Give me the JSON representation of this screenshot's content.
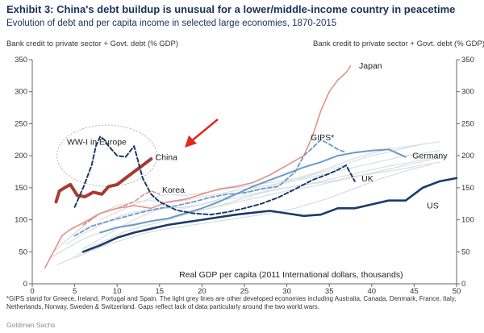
{
  "header": {
    "title": "Exhibit 3: China's debt buildup is unusual for a lower/middle-income country in peacetime",
    "subtitle": "Evolution of debt and per capita income in selected large economies, 1870-2015",
    "left_axis_title": "Bank credit to private sector + Govt. debt (% GDP)",
    "right_axis_title": "Bank credit to private sector + Govt. debt (% GDP)"
  },
  "footnote": "*GIPS stand for Greece, Ireland, Portugal and Spain. The light grey lines are other developed economies including Australia, Canada, Denmark, France, Italy, Netherlands, Norway, Sweden & Switzerland. Gaps reflect lack of data particularly around the two world wars.",
  "source": "Goldman Sachs",
  "chart_data": {
    "type": "line",
    "title": "Exhibit 3: China's debt buildup is unusual for a lower/middle-income country in peacetime",
    "xlabel": "Real GDP per capita (2011 International dollars, thousands)",
    "ylabel": "Bank credit to private sector + Govt. debt (% GDP)",
    "xlim": [
      0,
      50
    ],
    "ylim": [
      0,
      350
    ],
    "x_ticks": [
      0,
      5,
      10,
      15,
      20,
      25,
      30,
      35,
      40,
      45,
      50
    ],
    "y_ticks": [
      0,
      50,
      100,
      150,
      200,
      250,
      300,
      350
    ],
    "grid": false,
    "annotation_circle": "WW-I in Europe",
    "series": [
      {
        "name": "China",
        "color": "#a83a32",
        "points": [
          [
            2.8,
            128
          ],
          [
            3.2,
            145
          ],
          [
            3.8,
            150
          ],
          [
            4.5,
            155
          ],
          [
            5.3,
            138
          ],
          [
            6.2,
            136
          ],
          [
            7.2,
            143
          ],
          [
            8.2,
            140
          ],
          [
            9.0,
            152
          ],
          [
            10.0,
            155
          ],
          [
            11.0,
            165
          ],
          [
            12.0,
            175
          ],
          [
            13.0,
            185
          ],
          [
            14.0,
            195
          ]
        ]
      },
      {
        "name": "Japan",
        "color": "#e0928a",
        "points": [
          [
            1.5,
            25
          ],
          [
            2.5,
            50
          ],
          [
            3.5,
            75
          ],
          [
            4.5,
            85
          ],
          [
            6,
            95
          ],
          [
            8,
            110
          ],
          [
            10,
            118
          ],
          [
            12,
            122
          ],
          [
            14,
            118
          ],
          [
            16,
            128
          ],
          [
            18,
            132
          ],
          [
            20,
            140
          ],
          [
            22,
            148
          ],
          [
            24,
            152
          ],
          [
            26,
            158
          ],
          [
            28,
            170
          ],
          [
            30,
            185
          ],
          [
            32,
            200
          ],
          [
            33,
            230
          ],
          [
            34,
            270
          ],
          [
            35,
            300
          ],
          [
            36,
            318
          ],
          [
            37,
            330
          ],
          [
            37.5,
            340
          ]
        ]
      },
      {
        "name": "Korea",
        "color": "#e0928a",
        "points": [
          [
            6,
            92
          ],
          [
            8,
            110
          ],
          [
            10,
            118
          ],
          [
            12,
            128
          ],
          [
            13,
            138
          ],
          [
            14,
            145
          ],
          [
            15,
            140
          ]
        ]
      },
      {
        "name": "GIPS*",
        "color": "#6a9ac9",
        "points": [
          [
            5,
            75
          ],
          [
            7,
            90
          ],
          [
            9,
            98
          ],
          [
            11,
            105
          ],
          [
            13,
            112
          ],
          [
            15,
            118
          ],
          [
            17,
            122
          ],
          [
            19,
            128
          ],
          [
            21,
            135
          ],
          [
            23,
            140
          ],
          [
            25,
            142
          ],
          [
            27,
            148
          ],
          [
            29,
            152
          ],
          [
            31,
            175
          ],
          [
            32,
            200
          ],
          [
            33,
            212
          ],
          [
            34,
            225
          ],
          [
            35,
            218
          ],
          [
            36,
            210
          ],
          [
            37,
            205
          ]
        ]
      },
      {
        "name": "Germany",
        "color": "#6a9ac9",
        "points": [
          [
            8,
            80
          ],
          [
            10,
            88
          ],
          [
            12,
            92
          ],
          [
            14,
            98
          ],
          [
            16,
            102
          ],
          [
            18,
            110
          ],
          [
            20,
            118
          ],
          [
            22,
            128
          ],
          [
            24,
            140
          ],
          [
            26,
            152
          ],
          [
            28,
            162
          ],
          [
            30,
            172
          ],
          [
            32,
            182
          ],
          [
            34,
            190
          ],
          [
            36,
            200
          ],
          [
            38,
            205
          ],
          [
            40,
            208
          ],
          [
            42,
            210
          ],
          [
            44,
            198
          ]
        ]
      },
      {
        "name": "UK",
        "color": "#1b3a6a",
        "points": [
          [
            5,
            120
          ],
          [
            6,
            150
          ],
          [
            7,
            185
          ],
          [
            7.5,
            215
          ],
          [
            8,
            230
          ],
          [
            8.5,
            225
          ],
          [
            9,
            215
          ],
          [
            10,
            200
          ],
          [
            11,
            198
          ],
          [
            12,
            215
          ],
          [
            13,
            165
          ],
          [
            14,
            140
          ],
          [
            15,
            128
          ],
          [
            17,
            115
          ],
          [
            19,
            110
          ],
          [
            21,
            108
          ],
          [
            23,
            112
          ],
          [
            25,
            118
          ],
          [
            27,
            125
          ],
          [
            29,
            135
          ],
          [
            31,
            148
          ],
          [
            33,
            162
          ],
          [
            35,
            172
          ],
          [
            36,
            178
          ],
          [
            37,
            185
          ],
          [
            38,
            160
          ]
        ]
      },
      {
        "name": "US",
        "color": "#1b3a6a",
        "points": [
          [
            6,
            50
          ],
          [
            8,
            60
          ],
          [
            10,
            72
          ],
          [
            12,
            80
          ],
          [
            14,
            86
          ],
          [
            16,
            92
          ],
          [
            18,
            96
          ],
          [
            20,
            100
          ],
          [
            22,
            104
          ],
          [
            24,
            108
          ],
          [
            26,
            111
          ],
          [
            28,
            114
          ],
          [
            30,
            110
          ],
          [
            32,
            106
          ],
          [
            34,
            108
          ],
          [
            36,
            118
          ],
          [
            38,
            118
          ],
          [
            40,
            124
          ],
          [
            42,
            130
          ],
          [
            44,
            130
          ],
          [
            46,
            150
          ],
          [
            48,
            160
          ],
          [
            50,
            165
          ]
        ]
      },
      {
        "name": "",
        "color": "#d6dde4",
        "points": [
          [
            2,
            40
          ],
          [
            4,
            55
          ],
          [
            6,
            70
          ],
          [
            8,
            80
          ],
          [
            10,
            88
          ],
          [
            12,
            94
          ],
          [
            14,
            98
          ],
          [
            16,
            102
          ],
          [
            18,
            108
          ],
          [
            20,
            115
          ],
          [
            22,
            122
          ],
          [
            24,
            130
          ],
          [
            26,
            138
          ],
          [
            28,
            145
          ],
          [
            30,
            150
          ],
          [
            32,
            155
          ],
          [
            34,
            158
          ],
          [
            36,
            162
          ],
          [
            38,
            168
          ],
          [
            40,
            172
          ],
          [
            42,
            176
          ],
          [
            44,
            180
          ],
          [
            46,
            186
          ],
          [
            48,
            190
          ]
        ]
      },
      {
        "name": "",
        "color": "#d6dde4",
        "points": [
          [
            3,
            30
          ],
          [
            5,
            42
          ],
          [
            7,
            58
          ],
          [
            9,
            70
          ],
          [
            11,
            82
          ],
          [
            13,
            90
          ],
          [
            15,
            96
          ],
          [
            17,
            104
          ],
          [
            19,
            112
          ],
          [
            21,
            118
          ],
          [
            23,
            124
          ],
          [
            25,
            130
          ],
          [
            27,
            136
          ],
          [
            29,
            142
          ],
          [
            31,
            148
          ],
          [
            33,
            152
          ],
          [
            35,
            158
          ],
          [
            37,
            164
          ],
          [
            39,
            170
          ],
          [
            41,
            176
          ],
          [
            43,
            182
          ],
          [
            45,
            188
          ],
          [
            47,
            194
          ],
          [
            49,
            198
          ]
        ]
      },
      {
        "name": "",
        "color": "#d6dde4",
        "points": [
          [
            2.5,
            50
          ],
          [
            4,
            68
          ],
          [
            6,
            90
          ],
          [
            8,
            110
          ],
          [
            10,
            122
          ],
          [
            12,
            128
          ],
          [
            14,
            130
          ],
          [
            16,
            126
          ],
          [
            18,
            130
          ],
          [
            20,
            136
          ],
          [
            22,
            140
          ],
          [
            24,
            146
          ],
          [
            26,
            150
          ],
          [
            28,
            154
          ],
          [
            30,
            160
          ],
          [
            32,
            164
          ],
          [
            34,
            170
          ],
          [
            36,
            176
          ],
          [
            38,
            182
          ],
          [
            40,
            188
          ],
          [
            42,
            194
          ],
          [
            44,
            200
          ],
          [
            46,
            204
          ],
          [
            48,
            208
          ]
        ]
      },
      {
        "name": "",
        "color": "#d6dde4",
        "points": [
          [
            4,
            62
          ],
          [
            6,
            78
          ],
          [
            8,
            92
          ],
          [
            10,
            104
          ],
          [
            12,
            112
          ],
          [
            14,
            116
          ],
          [
            16,
            118
          ],
          [
            18,
            120
          ],
          [
            20,
            124
          ],
          [
            22,
            130
          ],
          [
            24,
            134
          ],
          [
            26,
            140
          ],
          [
            28,
            146
          ],
          [
            30,
            150
          ],
          [
            32,
            154
          ],
          [
            34,
            160
          ],
          [
            36,
            166
          ],
          [
            38,
            172
          ],
          [
            40,
            178
          ],
          [
            42,
            184
          ],
          [
            44,
            188
          ],
          [
            46,
            194
          ],
          [
            48,
            200
          ]
        ]
      },
      {
        "name": "",
        "color": "#d6dde4",
        "points": [
          [
            5,
            40
          ],
          [
            7,
            52
          ],
          [
            9,
            62
          ],
          [
            11,
            70
          ],
          [
            13,
            78
          ],
          [
            15,
            84
          ],
          [
            17,
            88
          ],
          [
            19,
            92
          ],
          [
            21,
            96
          ],
          [
            23,
            100
          ],
          [
            25,
            104
          ],
          [
            27,
            108
          ],
          [
            29,
            112
          ],
          [
            31,
            118
          ],
          [
            33,
            126
          ],
          [
            35,
            134
          ],
          [
            37,
            144
          ],
          [
            39,
            154
          ],
          [
            41,
            164
          ],
          [
            43,
            172
          ],
          [
            45,
            180
          ],
          [
            47,
            186
          ]
        ]
      },
      {
        "name": "",
        "color": "#d6dde4",
        "points": [
          [
            6,
            55
          ],
          [
            8,
            70
          ],
          [
            10,
            86
          ],
          [
            12,
            100
          ],
          [
            14,
            112
          ],
          [
            16,
            120
          ],
          [
            18,
            118
          ],
          [
            20,
            124
          ],
          [
            22,
            132
          ],
          [
            24,
            140
          ],
          [
            26,
            146
          ],
          [
            28,
            152
          ],
          [
            30,
            158
          ],
          [
            32,
            166
          ],
          [
            34,
            174
          ],
          [
            36,
            182
          ],
          [
            38,
            192
          ],
          [
            40,
            200
          ],
          [
            42,
            206
          ],
          [
            44,
            212
          ],
          [
            46,
            218
          ],
          [
            48,
            222
          ]
        ]
      },
      {
        "name": "",
        "color": "#d6dde4",
        "points": [
          [
            8,
            100
          ],
          [
            10,
            112
          ],
          [
            12,
            124
          ],
          [
            14,
            134
          ],
          [
            16,
            140
          ],
          [
            18,
            138
          ],
          [
            20,
            142
          ],
          [
            22,
            146
          ],
          [
            24,
            150
          ],
          [
            26,
            154
          ],
          [
            28,
            158
          ],
          [
            30,
            162
          ],
          [
            32,
            168
          ],
          [
            34,
            176
          ],
          [
            36,
            186
          ],
          [
            38,
            196
          ],
          [
            40,
            204
          ],
          [
            42,
            210
          ],
          [
            44,
            214
          ],
          [
            46,
            218
          ]
        ]
      }
    ]
  }
}
